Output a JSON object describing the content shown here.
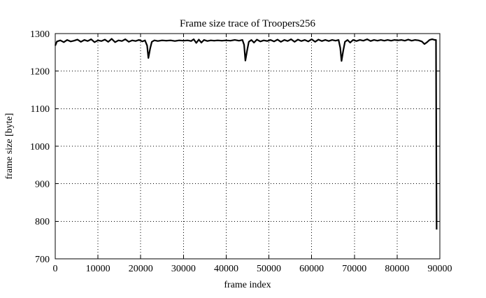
{
  "chart_data": {
    "type": "line",
    "title": "Frame size trace of Troopers256",
    "xlabel": "frame index",
    "ylabel": "frame size [byte]",
    "xlim": [
      0,
      90000
    ],
    "ylim": [
      700,
      1300
    ],
    "xticks": [
      0,
      10000,
      20000,
      30000,
      40000,
      50000,
      60000,
      70000,
      80000,
      90000
    ],
    "yticks": [
      700,
      800,
      900,
      1000,
      1100,
      1200,
      1300
    ],
    "grid": true,
    "grid_style": "dotted",
    "legend_position": "none",
    "line_color": "#000000",
    "background_color": "#ffffff",
    "series": [
      {
        "name": "frame size trace",
        "points": [
          [
            0,
            1268
          ],
          [
            400,
            1279
          ],
          [
            1200,
            1282
          ],
          [
            2000,
            1277
          ],
          [
            2800,
            1283
          ],
          [
            3600,
            1279
          ],
          [
            4400,
            1281
          ],
          [
            5200,
            1284
          ],
          [
            6000,
            1278
          ],
          [
            6800,
            1283
          ],
          [
            7600,
            1280
          ],
          [
            8400,
            1285
          ],
          [
            9200,
            1277
          ],
          [
            10000,
            1282
          ],
          [
            10800,
            1280
          ],
          [
            11600,
            1284
          ],
          [
            12400,
            1278
          ],
          [
            13200,
            1286
          ],
          [
            14000,
            1277
          ],
          [
            14800,
            1282
          ],
          [
            15600,
            1280
          ],
          [
            16400,
            1285
          ],
          [
            17200,
            1278
          ],
          [
            18000,
            1282
          ],
          [
            18800,
            1280
          ],
          [
            19600,
            1283
          ],
          [
            20400,
            1279
          ],
          [
            21000,
            1282
          ],
          [
            21500,
            1268
          ],
          [
            21800,
            1235
          ],
          [
            22200,
            1260
          ],
          [
            22600,
            1278
          ],
          [
            23200,
            1282
          ],
          [
            24000,
            1280
          ],
          [
            25000,
            1282
          ],
          [
            26000,
            1281
          ],
          [
            27000,
            1282
          ],
          [
            28000,
            1280
          ],
          [
            29000,
            1282
          ],
          [
            30000,
            1281
          ],
          [
            31000,
            1282
          ],
          [
            31800,
            1280
          ],
          [
            32400,
            1285
          ],
          [
            33000,
            1275
          ],
          [
            33600,
            1284
          ],
          [
            34200,
            1276
          ],
          [
            34800,
            1283
          ],
          [
            35600,
            1280
          ],
          [
            36400,
            1282
          ],
          [
            37200,
            1281
          ],
          [
            38000,
            1282
          ],
          [
            39000,
            1281
          ],
          [
            40000,
            1282
          ],
          [
            41000,
            1281
          ],
          [
            42000,
            1283
          ],
          [
            43000,
            1281
          ],
          [
            43800,
            1283
          ],
          [
            44200,
            1270
          ],
          [
            44500,
            1228
          ],
          [
            44900,
            1255
          ],
          [
            45300,
            1278
          ],
          [
            45900,
            1283
          ],
          [
            46500,
            1276
          ],
          [
            47200,
            1284
          ],
          [
            48000,
            1279
          ],
          [
            48800,
            1282
          ],
          [
            49600,
            1280
          ],
          [
            50400,
            1283
          ],
          [
            51200,
            1279
          ],
          [
            52000,
            1284
          ],
          [
            52800,
            1278
          ],
          [
            53600,
            1283
          ],
          [
            54400,
            1280
          ],
          [
            55200,
            1285
          ],
          [
            56000,
            1278
          ],
          [
            56800,
            1284
          ],
          [
            57600,
            1280
          ],
          [
            58400,
            1283
          ],
          [
            59200,
            1279
          ],
          [
            60000,
            1285
          ],
          [
            60800,
            1278
          ],
          [
            61600,
            1284
          ],
          [
            62400,
            1280
          ],
          [
            63200,
            1283
          ],
          [
            64000,
            1280
          ],
          [
            64800,
            1283
          ],
          [
            65600,
            1281
          ],
          [
            66300,
            1283
          ],
          [
            66700,
            1262
          ],
          [
            67000,
            1227
          ],
          [
            67400,
            1255
          ],
          [
            67800,
            1278
          ],
          [
            68400,
            1283
          ],
          [
            69000,
            1276
          ],
          [
            69700,
            1283
          ],
          [
            70500,
            1280
          ],
          [
            71300,
            1283
          ],
          [
            72100,
            1281
          ],
          [
            73000,
            1285
          ],
          [
            73800,
            1280
          ],
          [
            74600,
            1283
          ],
          [
            75400,
            1281
          ],
          [
            76200,
            1283
          ],
          [
            77000,
            1281
          ],
          [
            77800,
            1283
          ],
          [
            78600,
            1281
          ],
          [
            79400,
            1283
          ],
          [
            80200,
            1282
          ],
          [
            81000,
            1283
          ],
          [
            81800,
            1281
          ],
          [
            82600,
            1284
          ],
          [
            83400,
            1281
          ],
          [
            84200,
            1283
          ],
          [
            85000,
            1282
          ],
          [
            85800,
            1279
          ],
          [
            86400,
            1272
          ],
          [
            87000,
            1277
          ],
          [
            87600,
            1283
          ],
          [
            88200,
            1285
          ],
          [
            88800,
            1283
          ],
          [
            89100,
            1283
          ],
          [
            89180,
            950
          ],
          [
            89250,
            778
          ]
        ]
      }
    ]
  }
}
